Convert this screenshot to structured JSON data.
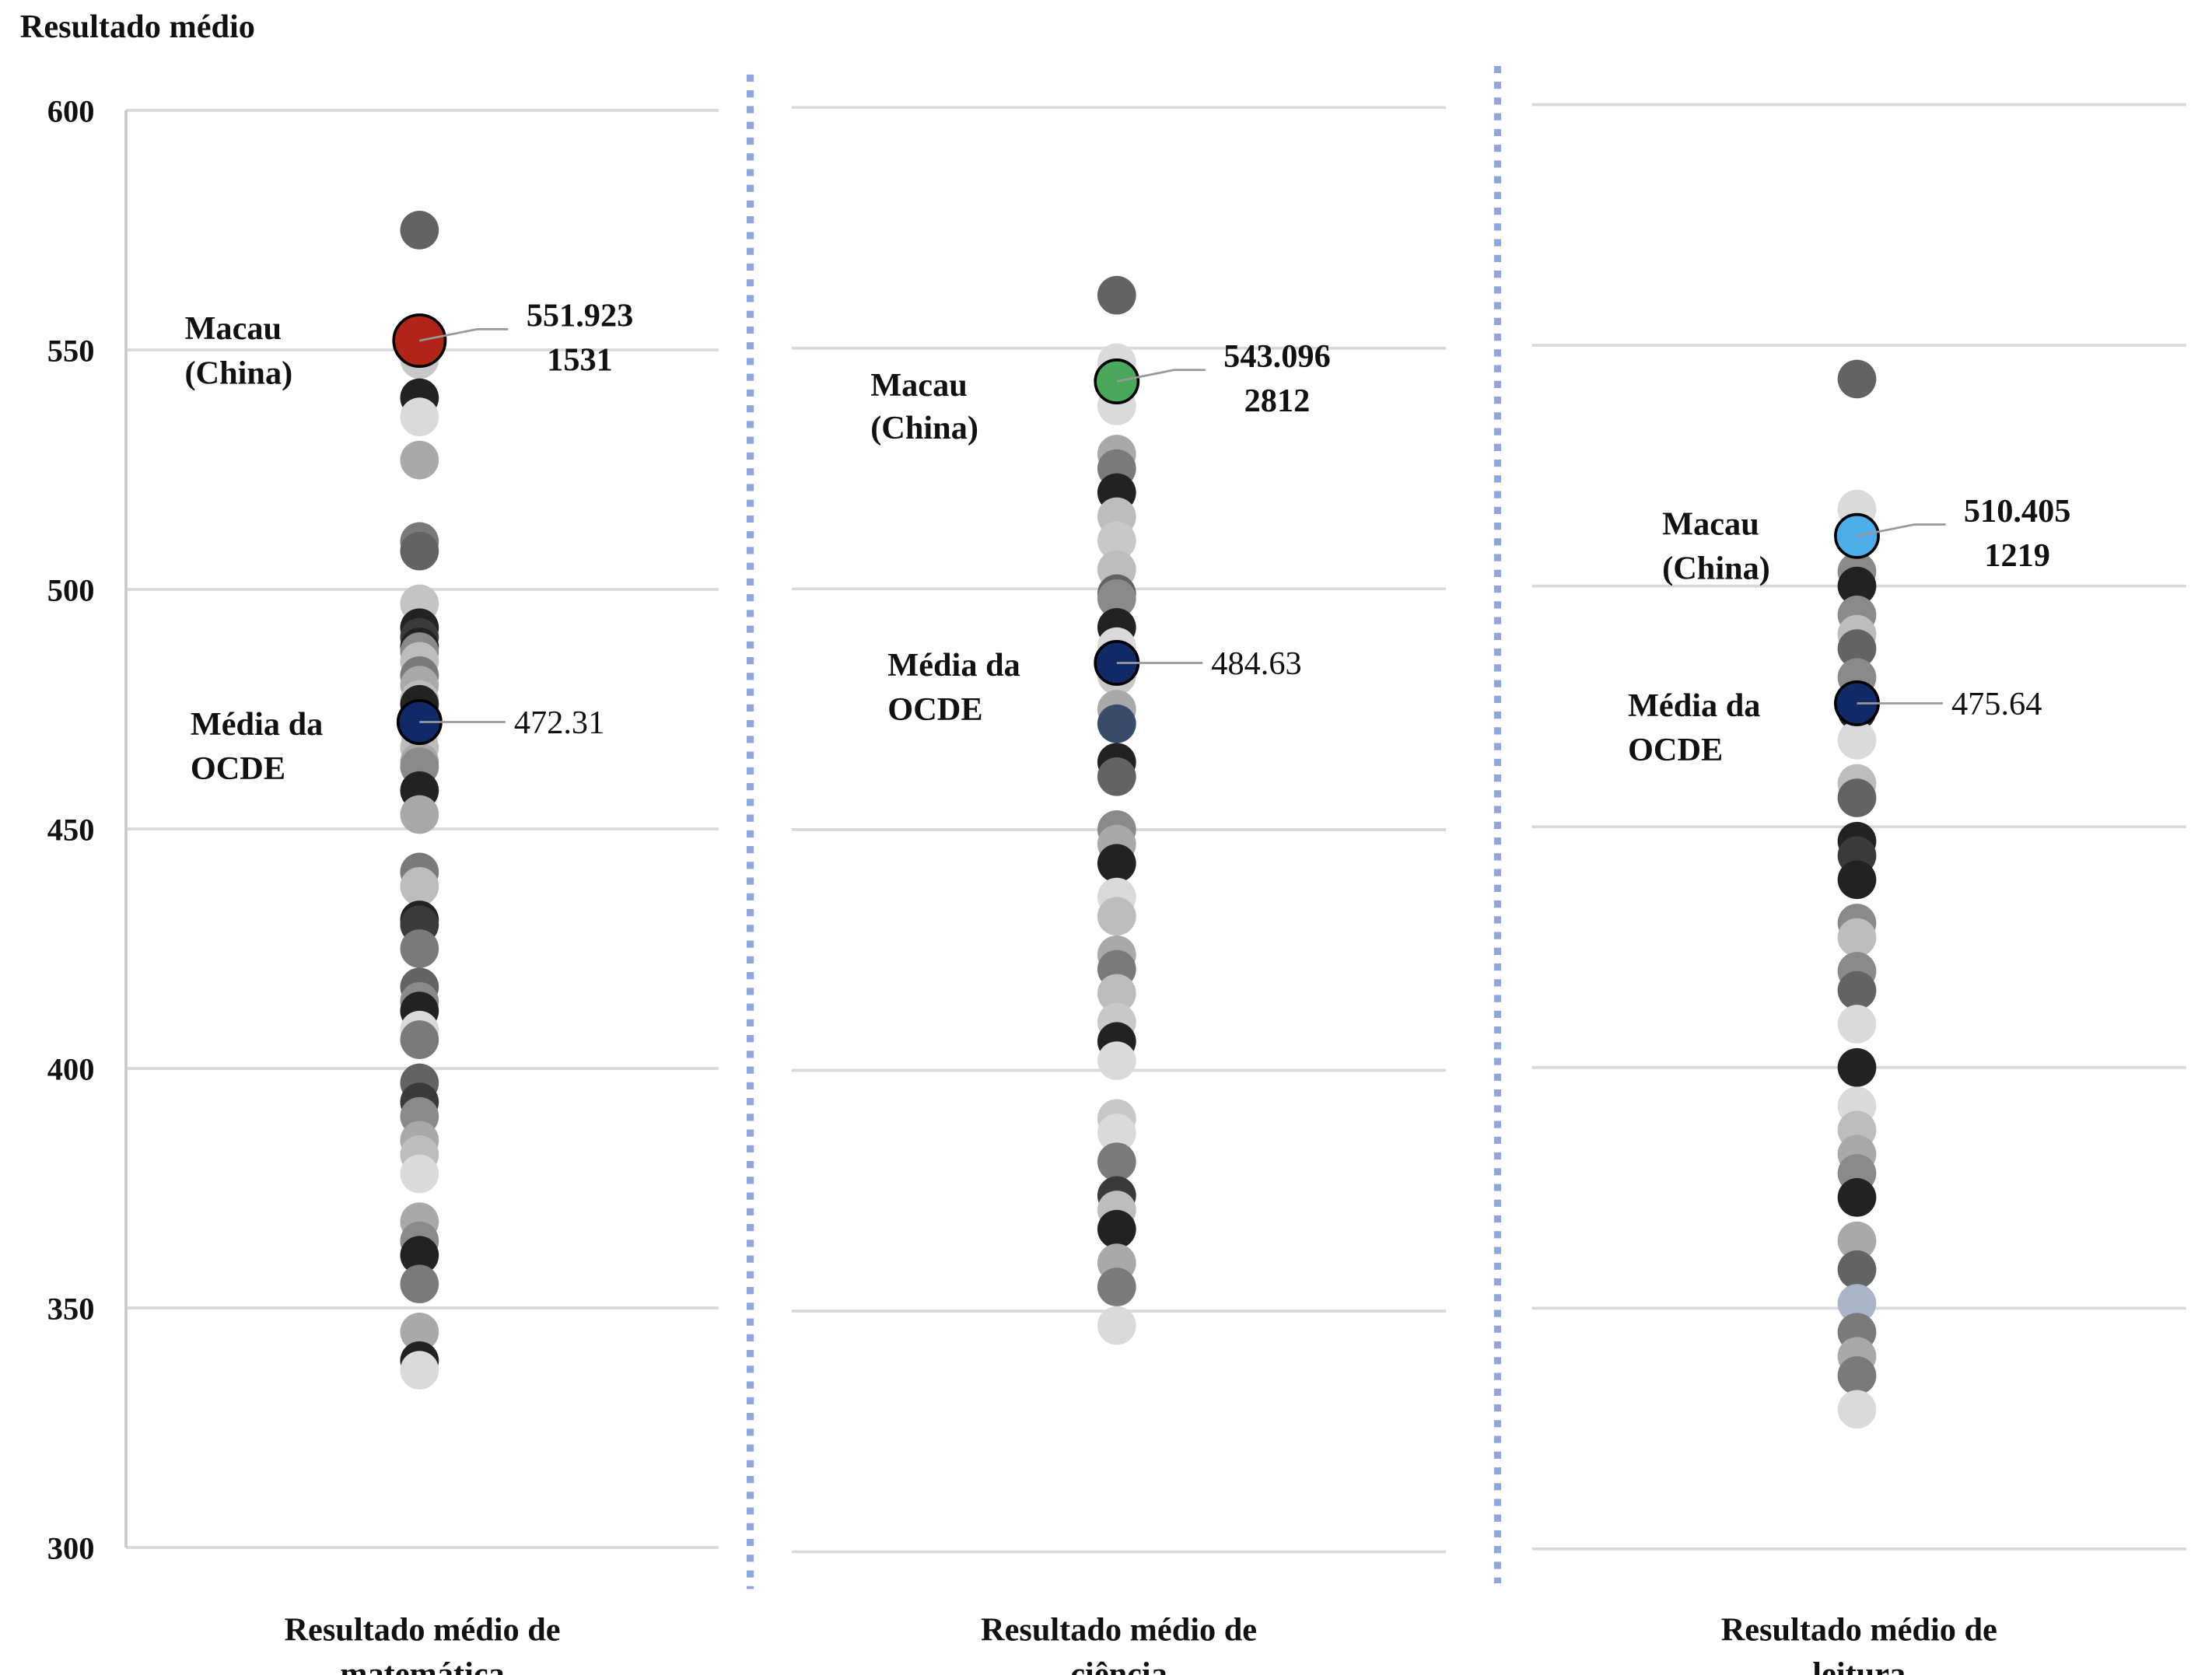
{
  "chart_data": {
    "type": "scatter",
    "ylabel": "Resultado médio",
    "ylim": [
      300,
      600
    ],
    "yticks": [
      300,
      350,
      400,
      450,
      500,
      550,
      600
    ],
    "grid": true,
    "panels": [
      {
        "xlabel_line1": "Resultado médio de",
        "xlabel_line2": "matemática",
        "highlight": {
          "label_line1": "Macau",
          "label_line2": "(China)",
          "value": 551.923,
          "value_text": "551.923",
          "count_text": "1531",
          "color": "#b22418"
        },
        "oecd": {
          "label_line1": "Média da",
          "label_line2": "OCDE",
          "value": 472.31,
          "value_text": "472.31",
          "color": "#0f2a66"
        },
        "points": [
          {
            "v": 575,
            "c": "#636363"
          },
          {
            "v": 548,
            "c": "#c8c8c8"
          },
          {
            "v": 540,
            "c": "#222222"
          },
          {
            "v": 536,
            "c": "#dadada"
          },
          {
            "v": 527,
            "c": "#a9a9a9"
          },
          {
            "v": 510,
            "c": "#7a7a7a"
          },
          {
            "v": 508,
            "c": "#636363"
          },
          {
            "v": 497,
            "c": "#c4c4c4"
          },
          {
            "v": 492,
            "c": "#222222"
          },
          {
            "v": 490,
            "c": "#3a3a3a"
          },
          {
            "v": 488,
            "c": "#222222"
          },
          {
            "v": 487,
            "c": "#8a8a8a"
          },
          {
            "v": 485,
            "c": "#bdbdbd"
          },
          {
            "v": 482,
            "c": "#7a7a7a"
          },
          {
            "v": 480,
            "c": "#a9a9a9"
          },
          {
            "v": 477,
            "c": "#bdbdbd"
          },
          {
            "v": 476,
            "c": "#222222"
          },
          {
            "v": 470,
            "c": "#dadada"
          },
          {
            "v": 467,
            "c": "#bdbdbd"
          },
          {
            "v": 464,
            "c": "#a9a9a9"
          },
          {
            "v": 463,
            "c": "#8a8a8a"
          },
          {
            "v": 458,
            "c": "#222222"
          },
          {
            "v": 453,
            "c": "#a9a9a9"
          },
          {
            "v": 441,
            "c": "#7a7a7a"
          },
          {
            "v": 438,
            "c": "#bdbdbd"
          },
          {
            "v": 431,
            "c": "#222222"
          },
          {
            "v": 430,
            "c": "#3a3a3a"
          },
          {
            "v": 425,
            "c": "#7a7a7a"
          },
          {
            "v": 417,
            "c": "#636363"
          },
          {
            "v": 414,
            "c": "#8a8a8a"
          },
          {
            "v": 412,
            "c": "#222222"
          },
          {
            "v": 408,
            "c": "#dadada"
          },
          {
            "v": 406,
            "c": "#7a7a7a"
          },
          {
            "v": 397,
            "c": "#636363"
          },
          {
            "v": 393,
            "c": "#3a3a3a"
          },
          {
            "v": 390,
            "c": "#8a8a8a"
          },
          {
            "v": 385,
            "c": "#a9a9a9"
          },
          {
            "v": 382,
            "c": "#bdbdbd"
          },
          {
            "v": 378,
            "c": "#dadada"
          },
          {
            "v": 368,
            "c": "#a9a9a9"
          },
          {
            "v": 364,
            "c": "#8a8a8a"
          },
          {
            "v": 361,
            "c": "#222222"
          },
          {
            "v": 355,
            "c": "#7a7a7a"
          },
          {
            "v": 345,
            "c": "#a9a9a9"
          },
          {
            "v": 339,
            "c": "#222222"
          },
          {
            "v": 337,
            "c": "#dadada"
          }
        ]
      },
      {
        "xlabel_line1": "Resultado médio de",
        "xlabel_line2": "ciência",
        "highlight": {
          "label_line1": "Macau",
          "label_line2": "(China)",
          "value": 543.096,
          "value_text": "543.096",
          "count_text": "2812",
          "color": "#4aa85a"
        },
        "oecd": {
          "label_line1": "Média da",
          "label_line2": "OCDE",
          "value": 484.63,
          "value_text": "484.63",
          "color": "#0f2a66"
        },
        "points": [
          {
            "v": 561,
            "c": "#636363"
          },
          {
            "v": 547,
            "c": "#dadada"
          },
          {
            "v": 538,
            "c": "#dadada"
          },
          {
            "v": 528,
            "c": "#a9a9a9"
          },
          {
            "v": 525,
            "c": "#7a7a7a"
          },
          {
            "v": 520,
            "c": "#222222"
          },
          {
            "v": 515,
            "c": "#bdbdbd"
          },
          {
            "v": 510,
            "c": "#c8c8c8"
          },
          {
            "v": 504,
            "c": "#bdbdbd"
          },
          {
            "v": 499,
            "c": "#636363"
          },
          {
            "v": 498,
            "c": "#8a8a8a"
          },
          {
            "v": 492,
            "c": "#222222"
          },
          {
            "v": 488,
            "c": "#dadada"
          },
          {
            "v": 482,
            "c": "#c8c8c8"
          },
          {
            "v": 475,
            "c": "#a9a9a9"
          },
          {
            "v": 472,
            "c": "#3a4a6a"
          },
          {
            "v": 464,
            "c": "#222222"
          },
          {
            "v": 461,
            "c": "#636363"
          },
          {
            "v": 450,
            "c": "#8a8a8a"
          },
          {
            "v": 447,
            "c": "#a9a9a9"
          },
          {
            "v": 443,
            "c": "#222222"
          },
          {
            "v": 436,
            "c": "#dadada"
          },
          {
            "v": 432,
            "c": "#bdbdbd"
          },
          {
            "v": 424,
            "c": "#a9a9a9"
          },
          {
            "v": 421,
            "c": "#7a7a7a"
          },
          {
            "v": 416,
            "c": "#bdbdbd"
          },
          {
            "v": 410,
            "c": "#c8c8c8"
          },
          {
            "v": 406,
            "c": "#222222"
          },
          {
            "v": 402,
            "c": "#dadada"
          },
          {
            "v": 390,
            "c": "#c8c8c8"
          },
          {
            "v": 387,
            "c": "#dadada"
          },
          {
            "v": 381,
            "c": "#7a7a7a"
          },
          {
            "v": 374,
            "c": "#3a3a3a"
          },
          {
            "v": 371,
            "c": "#bdbdbd"
          },
          {
            "v": 367,
            "c": "#222222"
          },
          {
            "v": 360,
            "c": "#a9a9a9"
          },
          {
            "v": 355,
            "c": "#7a7a7a"
          },
          {
            "v": 347,
            "c": "#dadada"
          }
        ]
      },
      {
        "xlabel_line1": "Resultado médio de",
        "xlabel_line2": "leitura",
        "highlight": {
          "label_line1": "Macau",
          "label_line2": "(China)",
          "value": 510.405,
          "value_text": "510.405",
          "count_text": "1219",
          "color": "#4dade8"
        },
        "oecd": {
          "label_line1": "Média da",
          "label_line2": "OCDE",
          "value": 475.64,
          "value_text": "475.64",
          "color": "#0f2a66"
        },
        "points": [
          {
            "v": 543,
            "c": "#636363"
          },
          {
            "v": 516,
            "c": "#dadada"
          },
          {
            "v": 503,
            "c": "#8a8a8a"
          },
          {
            "v": 500,
            "c": "#222222"
          },
          {
            "v": 494,
            "c": "#8a8a8a"
          },
          {
            "v": 490,
            "c": "#bdbdbd"
          },
          {
            "v": 487,
            "c": "#636363"
          },
          {
            "v": 481,
            "c": "#8a8a8a"
          },
          {
            "v": 474,
            "c": "#222222"
          },
          {
            "v": 468,
            "c": "#dadada"
          },
          {
            "v": 459,
            "c": "#bdbdbd"
          },
          {
            "v": 456,
            "c": "#636363"
          },
          {
            "v": 447,
            "c": "#222222"
          },
          {
            "v": 444,
            "c": "#3a3a3a"
          },
          {
            "v": 439,
            "c": "#222222"
          },
          {
            "v": 430,
            "c": "#8a8a8a"
          },
          {
            "v": 427,
            "c": "#bdbdbd"
          },
          {
            "v": 420,
            "c": "#8a8a8a"
          },
          {
            "v": 416,
            "c": "#636363"
          },
          {
            "v": 409,
            "c": "#dadada"
          },
          {
            "v": 400,
            "c": "#222222"
          },
          {
            "v": 392,
            "c": "#dadada"
          },
          {
            "v": 387,
            "c": "#bdbdbd"
          },
          {
            "v": 382,
            "c": "#a9a9a9"
          },
          {
            "v": 378,
            "c": "#8a8a8a"
          },
          {
            "v": 373,
            "c": "#222222"
          },
          {
            "v": 364,
            "c": "#a9a9a9"
          },
          {
            "v": 358,
            "c": "#636363"
          },
          {
            "v": 351,
            "c": "#aab4c8"
          },
          {
            "v": 345,
            "c": "#7a7a7a"
          },
          {
            "v": 340,
            "c": "#a9a9a9"
          },
          {
            "v": 336,
            "c": "#7a7a7a"
          },
          {
            "v": 329,
            "c": "#dadada"
          }
        ]
      }
    ]
  }
}
